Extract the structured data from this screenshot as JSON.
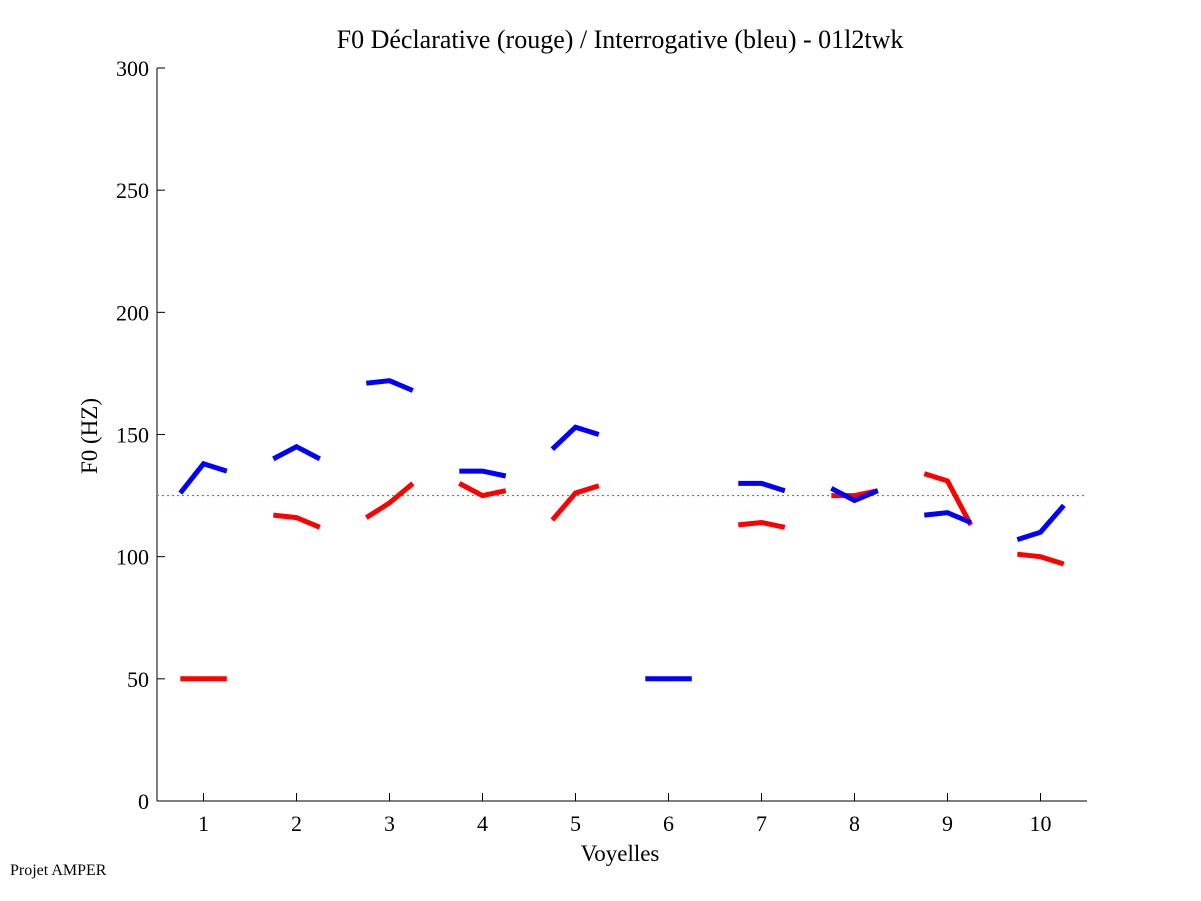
{
  "footer": "Projet AMPER",
  "chart_data": {
    "type": "line",
    "title": "F0 Déclarative (rouge) / Interrogative (bleu) - 01l2twk",
    "xlabel": "Voyelles",
    "ylabel": "F0 (HZ)",
    "xlim": [
      0.5,
      10.5
    ],
    "ylim": [
      0,
      300
    ],
    "xticks": [
      "1",
      "2",
      "3",
      "4",
      "5",
      "6",
      "7",
      "8",
      "9",
      "10"
    ],
    "yticks": [
      "0",
      "50",
      "100",
      "150",
      "200",
      "250",
      "300"
    ],
    "reference_line": {
      "y": 125,
      "color": "#00cc00",
      "style": "dotted"
    },
    "series": [
      {
        "name": "Déclarative (rouge)",
        "color": "#ff0000",
        "segments": [
          {
            "voyelle": 1,
            "x": [
              0.75,
              1.0,
              1.25
            ],
            "y": [
              50,
              50,
              50
            ]
          },
          {
            "voyelle": 2,
            "x": [
              1.75,
              2.0,
              2.25
            ],
            "y": [
              117,
              116,
              112
            ]
          },
          {
            "voyelle": 3,
            "x": [
              2.75,
              3.0,
              3.25
            ],
            "y": [
              116,
              122,
              130
            ]
          },
          {
            "voyelle": 4,
            "x": [
              3.75,
              4.0,
              4.25
            ],
            "y": [
              130,
              125,
              127
            ]
          },
          {
            "voyelle": 5,
            "x": [
              3.75,
              4.0,
              4.25
            ],
            "y": [
              115,
              126,
              129
            ],
            "shift": 1
          },
          {
            "voyelle": 7,
            "x": [
              6.75,
              7.0,
              7.25
            ],
            "y": [
              113,
              114,
              112
            ]
          },
          {
            "voyelle": 8,
            "x": [
              7.75,
              8.0,
              8.25
            ],
            "y": [
              125,
              125,
              127
            ]
          },
          {
            "voyelle": 9,
            "x": [
              8.75,
              9.0,
              9.25
            ],
            "y": [
              134,
              131,
              113
            ]
          },
          {
            "voyelle": 10,
            "x": [
              9.75,
              10.0,
              10.25
            ],
            "y": [
              101,
              100,
              97
            ]
          }
        ]
      },
      {
        "name": "Interrogative (bleu)",
        "color": "#0000ff",
        "segments": [
          {
            "voyelle": 1,
            "x": [
              0.75,
              1.0,
              1.25
            ],
            "y": [
              126,
              138,
              135
            ]
          },
          {
            "voyelle": 2,
            "x": [
              1.75,
              2.0,
              2.25
            ],
            "y": [
              140,
              145,
              140
            ]
          },
          {
            "voyelle": 3,
            "x": [
              2.75,
              3.0,
              3.25
            ],
            "y": [
              171,
              172,
              168
            ]
          },
          {
            "voyelle": 4,
            "x": [
              3.75,
              4.0,
              4.25
            ],
            "y": [
              135,
              135,
              133
            ]
          },
          {
            "voyelle": 5,
            "x": [
              4.75,
              5.0,
              5.25
            ],
            "y": [
              144,
              153,
              150
            ]
          },
          {
            "voyelle": 6,
            "x": [
              5.75,
              6.0,
              6.25
            ],
            "y": [
              50,
              50,
              50
            ]
          },
          {
            "voyelle": 7,
            "x": [
              6.75,
              7.0,
              7.25
            ],
            "y": [
              130,
              130,
              127
            ]
          },
          {
            "voyelle": 8,
            "x": [
              7.75,
              8.0,
              8.25
            ],
            "y": [
              128,
              123,
              127
            ]
          },
          {
            "voyelle": 9,
            "x": [
              8.75,
              9.0,
              9.25
            ],
            "y": [
              117,
              118,
              114
            ]
          },
          {
            "voyelle": 10,
            "x": [
              9.75,
              10.0,
              10.25
            ],
            "y": [
              107,
              110,
              121
            ]
          }
        ]
      }
    ]
  }
}
